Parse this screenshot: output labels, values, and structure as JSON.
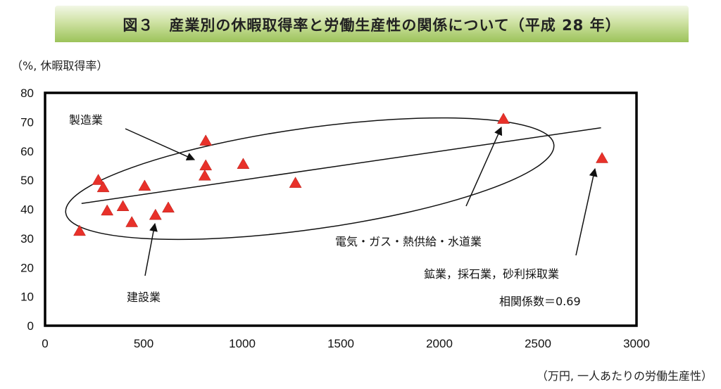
{
  "title": "図３　産業別の休暇取得率と労働生産性の関係について（平成 28 年）",
  "y_unit": "（%, 休暇取得率）",
  "x_unit": "（万円, 一人あたりの労働生産性）",
  "colors": {
    "marker": "#e8312a",
    "banner_top": "#f2f7e6",
    "banner_bottom": "#9cc35a"
  },
  "chart_data": {
    "type": "scatter",
    "title": "図３　産業別の休暇取得率と労働生産性の関係について（平成 28 年）",
    "xlabel": "（万円, 一人あたりの労働生産性）",
    "ylabel": "（%, 休暇取得率）",
    "xlim": [
      0,
      3000
    ],
    "ylim": [
      0,
      80
    ],
    "x_ticks": [
      0,
      500,
      1000,
      1500,
      2000,
      2500,
      3000
    ],
    "y_ticks": [
      0,
      10,
      20,
      30,
      40,
      50,
      60,
      70,
      80
    ],
    "grid": false,
    "marker": "triangle",
    "points": [
      {
        "x": 175,
        "y": 32.5
      },
      {
        "x": 270,
        "y": 50
      },
      {
        "x": 295,
        "y": 47.5
      },
      {
        "x": 315,
        "y": 39.5
      },
      {
        "x": 395,
        "y": 41
      },
      {
        "x": 440,
        "y": 35.5
      },
      {
        "x": 505,
        "y": 48
      },
      {
        "x": 560,
        "y": 38
      },
      {
        "x": 625,
        "y": 40.5
      },
      {
        "x": 810,
        "y": 51.5
      },
      {
        "x": 815,
        "y": 55
      },
      {
        "x": 815,
        "y": 63.5
      },
      {
        "x": 1005,
        "y": 55.5
      },
      {
        "x": 1270,
        "y": 49
      },
      {
        "x": 2325,
        "y": 71
      },
      {
        "x": 2825,
        "y": 57.5
      }
    ],
    "trendline": {
      "x": [
        185,
        2820
      ],
      "y": [
        42,
        68
      ]
    },
    "annotations": [
      {
        "text": "製造業"
      },
      {
        "text": "建設業"
      },
      {
        "text": "電気・ガス・熱供給・水道業"
      },
      {
        "text": "鉱業，採石業，砂利採取業"
      },
      {
        "text": "相関係数＝0.69"
      }
    ]
  }
}
